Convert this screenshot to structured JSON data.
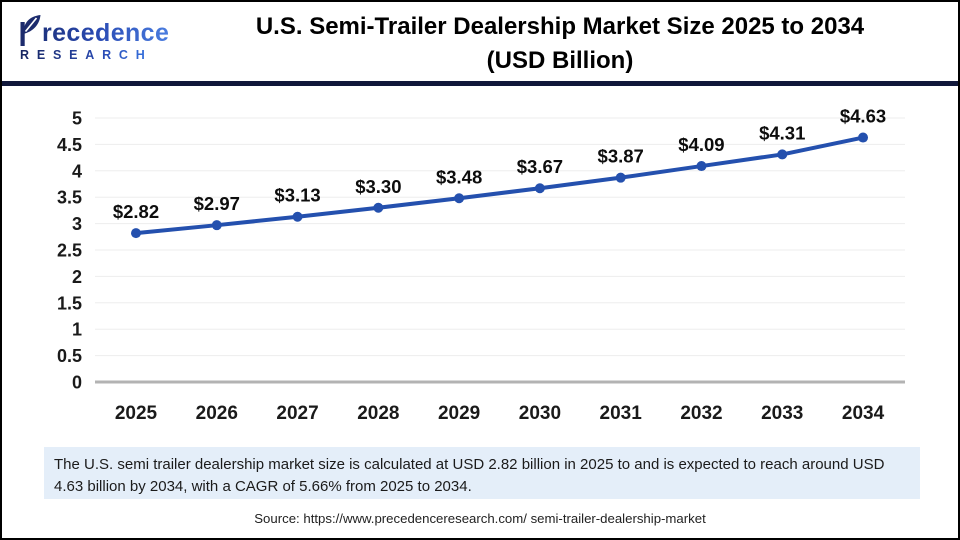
{
  "header": {
    "logo": {
      "brand": "Precedence",
      "brand_display": {
        "initial": "P",
        "rest": "recedence"
      },
      "sub": "RESEARCH"
    },
    "title_line1": "U.S. Semi-Trailer Dealership Market Size 2025 to 2034",
    "title_line2": "(USD Billion)"
  },
  "chart_data": {
    "type": "line",
    "title": "U.S. Semi-Trailer Dealership Market Size 2025 to 2034 (USD Billion)",
    "categories": [
      "2025",
      "2026",
      "2027",
      "2028",
      "2029",
      "2030",
      "2031",
      "2032",
      "2033",
      "2034"
    ],
    "series": [
      {
        "name": "U.S. Semi-Trailer Dealership Market Size (USD Billion)",
        "values": [
          2.82,
          2.97,
          3.13,
          3.3,
          3.48,
          3.67,
          3.87,
          4.09,
          4.31,
          4.63
        ]
      }
    ],
    "point_labels": [
      "$2.82",
      "$2.97",
      "$3.13",
      "$3.30",
      "$3.48",
      "$3.67",
      "$3.87",
      "$4.09",
      "$4.31",
      "$4.63"
    ],
    "xlabel": "",
    "ylabel": "",
    "ylim": [
      0,
      5
    ],
    "ytick_labels": [
      "0",
      "0.5",
      "1",
      "1.5",
      "2",
      "2.5",
      "3",
      "3.5",
      "4",
      "4.5",
      "5"
    ],
    "grid": true,
    "legend": "none",
    "line_color": "#2450ae",
    "gridline_color": "#ededed",
    "zero_axis_color": "#b3b3b3"
  },
  "note": {
    "text": "The U.S. semi trailer dealership market  size is calculated at USD 2.82 billion in 2025 to and is expected to reach around USD 4.63 billion by 2034, with a CAGR of 5.66% from 2025 to 2034.",
    "background": "#e4eef9"
  },
  "source": {
    "text": "Source: https://www.precedenceresearch.com/ semi-trailer-dealership-market"
  }
}
